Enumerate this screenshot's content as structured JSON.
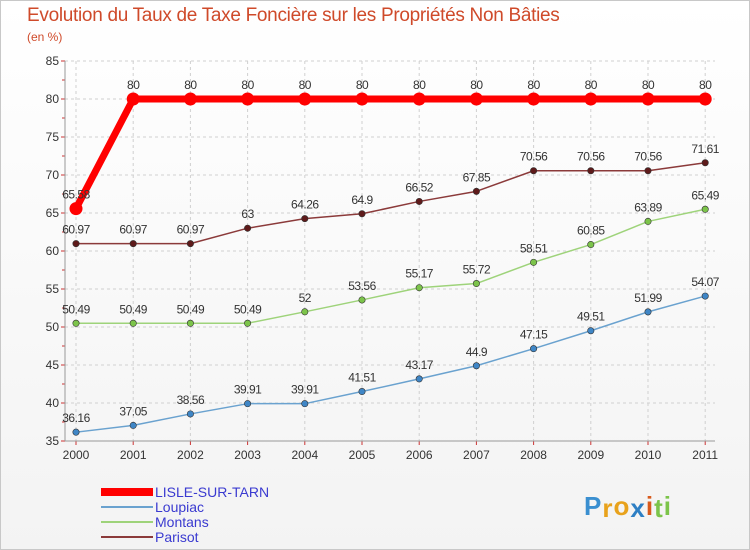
{
  "chart_data": {
    "type": "line",
    "title": "Evolution du Taux de Taxe Foncière sur les Propriétés Non Bâties",
    "subtitle": "(en %)",
    "xlabel": "",
    "ylabel": "(en %)",
    "categories": [
      "2000",
      "2001",
      "2002",
      "2003",
      "2004",
      "2005",
      "2006",
      "2007",
      "2008",
      "2009",
      "2010",
      "2011"
    ],
    "ylim": [
      35,
      85
    ],
    "yticks": [
      "35",
      "40",
      "45",
      "50",
      "55",
      "60",
      "65",
      "70",
      "75",
      "80",
      "85"
    ],
    "legend_position": "bottom-left",
    "series": [
      {
        "name": "LISLE-SUR-TARN",
        "color": "#ff0000",
        "emphasis": true,
        "values": [
          65.58,
          80,
          80,
          80,
          80,
          80,
          80,
          80,
          80,
          80,
          80,
          80
        ],
        "labels": [
          "65.58",
          "80",
          "80",
          "80",
          "80",
          "80",
          "80",
          "80",
          "80",
          "80",
          "80",
          "80"
        ]
      },
      {
        "name": "Loupiac",
        "color": "#6aa2cf",
        "marker": "#3f86c6",
        "values": [
          36.16,
          37.05,
          38.56,
          39.91,
          39.91,
          41.51,
          43.17,
          44.9,
          47.15,
          49.51,
          51.99,
          54.07
        ],
        "labels": [
          "36.16",
          "37.05",
          "38.56",
          "39.91",
          "39.91",
          "41.51",
          "43.17",
          "44.9",
          "47.15",
          "49.51",
          "51.99",
          "54.07"
        ]
      },
      {
        "name": "Montans",
        "color": "#9ed37a",
        "marker": "#7cc44a",
        "values": [
          50.49,
          50.49,
          50.49,
          50.49,
          52,
          53.56,
          55.17,
          55.72,
          58.51,
          60.85,
          63.89,
          65.49
        ],
        "labels": [
          "50.49",
          "50.49",
          "50.49",
          "50.49",
          "52",
          "53.56",
          "55.17",
          "55.72",
          "58.51",
          "60.85",
          "63.89",
          "65.49"
        ]
      },
      {
        "name": "Parisot",
        "color": "#8b3a3a",
        "marker": "#5e1a1a",
        "values": [
          60.97,
          60.97,
          60.97,
          63,
          64.26,
          64.9,
          66.52,
          67.85,
          70.56,
          70.56,
          70.56,
          71.61
        ],
        "labels": [
          "60.97",
          "60.97",
          "60.97",
          "63",
          "64.26",
          "64.9",
          "66.52",
          "67.85",
          "70.56",
          "70.56",
          "70.56",
          "71.61"
        ]
      }
    ]
  },
  "logo": {
    "text": "Proxiti",
    "letters": [
      "P",
      "r",
      "o",
      "x",
      "i",
      "t",
      "i"
    ],
    "colors": [
      "#3a8fd0",
      "#e8a21c",
      "#e8a21c",
      "#2e7fc4",
      "#d85a1c",
      "#7cc44a",
      "#7cc44a"
    ]
  }
}
